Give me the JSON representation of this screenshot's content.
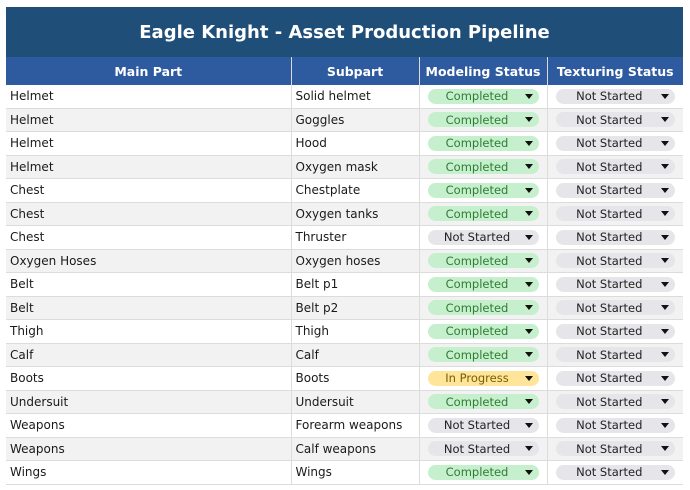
{
  "title": "Eagle Knight - Asset Production Pipeline",
  "columns": [
    "Main Part",
    "Subpart",
    "Modeling Status",
    "Texturing Status"
  ],
  "status_colors": {
    "Completed": "#c6efce",
    "Not Started": "#e6e6ea",
    "In Progress": "#ffe599"
  },
  "rows": [
    {
      "main": "Helmet",
      "sub": "Solid helmet",
      "modeling": "Completed",
      "texturing": "Not Started"
    },
    {
      "main": "Helmet",
      "sub": "Goggles",
      "modeling": "Completed",
      "texturing": "Not Started"
    },
    {
      "main": "Helmet",
      "sub": "Hood",
      "modeling": "Completed",
      "texturing": "Not Started"
    },
    {
      "main": "Helmet",
      "sub": "Oxygen mask",
      "modeling": "Completed",
      "texturing": "Not Started"
    },
    {
      "main": "Chest",
      "sub": "Chestplate",
      "modeling": "Completed",
      "texturing": "Not Started"
    },
    {
      "main": "Chest",
      "sub": "Oxygen tanks",
      "modeling": "Completed",
      "texturing": "Not Started"
    },
    {
      "main": "Chest",
      "sub": "Thruster",
      "modeling": "Not Started",
      "texturing": "Not Started"
    },
    {
      "main": "Oxygen Hoses",
      "sub": "Oxygen hoses",
      "modeling": "Completed",
      "texturing": "Not Started"
    },
    {
      "main": "Belt",
      "sub": "Belt p1",
      "modeling": "Completed",
      "texturing": "Not Started"
    },
    {
      "main": "Belt",
      "sub": "Belt p2",
      "modeling": "Completed",
      "texturing": "Not Started"
    },
    {
      "main": "Thigh",
      "sub": "Thigh",
      "modeling": "Completed",
      "texturing": "Not Started"
    },
    {
      "main": "Calf",
      "sub": "Calf",
      "modeling": "Completed",
      "texturing": "Not Started"
    },
    {
      "main": "Boots",
      "sub": "Boots",
      "modeling": "In Progress",
      "texturing": "Not Started"
    },
    {
      "main": "Undersuit",
      "sub": "Undersuit",
      "modeling": "Completed",
      "texturing": "Not Started"
    },
    {
      "main": "Weapons",
      "sub": "Forearm weapons",
      "modeling": "Not Started",
      "texturing": "Not Started"
    },
    {
      "main": "Weapons",
      "sub": "Calf weapons",
      "modeling": "Not Started",
      "texturing": "Not Started"
    },
    {
      "main": "Wings",
      "sub": "Wings",
      "modeling": "Completed",
      "texturing": "Not Started"
    }
  ]
}
